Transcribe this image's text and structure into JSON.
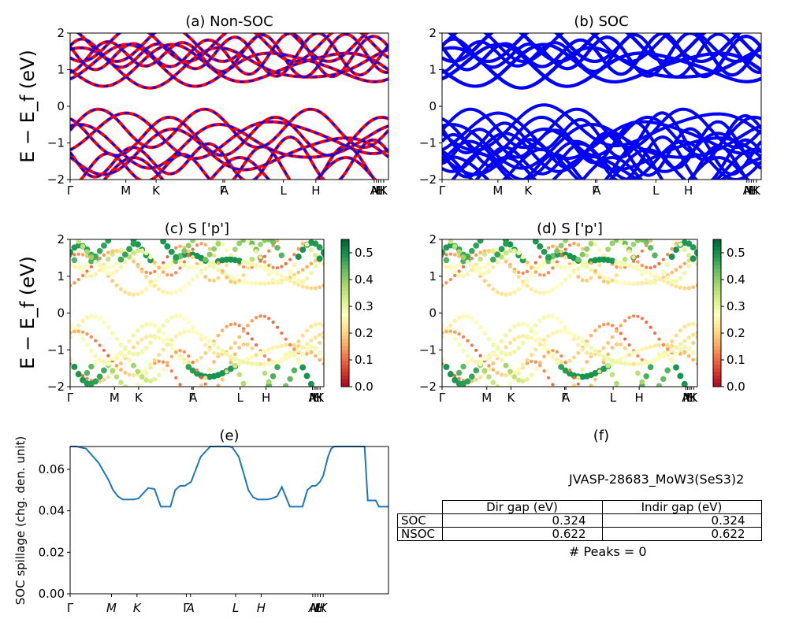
{
  "chart_data": [
    {
      "type": "line",
      "title": "(a) Non-SOC",
      "ylabel": "E − E_f (eV)",
      "ylim": [
        -2,
        2
      ],
      "yticks": [
        "2",
        "1",
        "0",
        "−1",
        "−2"
      ],
      "xtick_labels": [
        "Γ",
        "M",
        "K",
        "Γ",
        "A",
        "L",
        "H",
        "A",
        "M",
        "L",
        "H",
        "K"
      ],
      "series": [
        {
          "color": "#ff0000",
          "style": "solid",
          "band_count": 16
        },
        {
          "color": "#0000ff",
          "style": "dashed",
          "band_count": 16
        }
      ],
      "band_gap_eV": 0.622
    },
    {
      "type": "line",
      "title": "(b) SOC",
      "ylim": [
        -2,
        2
      ],
      "yticks": [
        "2",
        "1",
        "0",
        "−1",
        "−2"
      ],
      "xtick_labels": [
        "Γ",
        "M",
        "K",
        "Γ",
        "A",
        "L",
        "H",
        "A",
        "M",
        "L",
        "H",
        "K"
      ],
      "series": [
        {
          "color": "#0000ff",
          "style": "solid",
          "band_count": 32
        }
      ],
      "band_gap_eV": 0.324
    },
    {
      "type": "scatter",
      "title": "(c)  S ['p']",
      "ylabel": "E − E_f (eV)",
      "ylim": [
        -2,
        2
      ],
      "yticks": [
        "2",
        "1",
        "0",
        "−1",
        "−2"
      ],
      "xtick_labels": [
        "Γ",
        "M",
        "K",
        "Γ",
        "A",
        "L",
        "H",
        "A",
        "M",
        "L",
        "H",
        "K"
      ],
      "colormap": "RdYlGn",
      "colorbar_ticks": [
        "0.5",
        "0.4",
        "0.3",
        "0.2",
        "0.1",
        "0.0"
      ]
    },
    {
      "type": "scatter",
      "title": "(d) S ['p']",
      "ylim": [
        -2,
        2
      ],
      "yticks": [
        "2",
        "1",
        "0",
        "−1",
        "−2"
      ],
      "xtick_labels": [
        "Γ",
        "M",
        "K",
        "Γ",
        "A",
        "L",
        "H",
        "A",
        "M",
        "L",
        "H",
        "K"
      ],
      "colormap": "RdYlGn",
      "colorbar_ticks": [
        "0.5",
        "0.4",
        "0.3",
        "0.2",
        "0.1",
        "0.0"
      ]
    },
    {
      "type": "line",
      "title": "(e)",
      "ylabel": "SOC spillage (chg. den. unit)",
      "ylim": [
        0,
        0.071
      ],
      "yticks": [
        "0.06",
        "0.04",
        "0.02",
        "0.00"
      ],
      "xtick_labels": [
        "Γ",
        "M",
        "K",
        "Γ",
        "A",
        "L",
        "H",
        "A",
        "M",
        "L",
        "H",
        "K"
      ],
      "series": [
        {
          "color": "#1f77b4",
          "x": [
            0,
            0.02,
            0.05,
            0.09,
            0.12,
            0.135,
            0.15,
            0.165,
            0.18,
            0.2,
            0.215,
            0.245,
            0.265,
            0.285,
            0.3,
            0.315,
            0.33,
            0.345,
            0.36,
            0.38,
            0.41,
            0.44,
            0.47,
            0.5,
            0.51,
            0.53,
            0.545,
            0.56,
            0.575,
            0.59,
            0.605,
            0.62,
            0.635,
            0.65,
            0.665,
            0.69,
            0.715,
            0.73,
            0.745,
            0.76,
            0.77,
            0.775,
            0.785,
            0.795,
            0.8,
            0.81,
            0.82,
            0.83,
            0.85,
            0.87,
            0.89,
            0.91,
            0.925,
            0.935,
            0.94,
            0.96,
            0.97,
            0.98,
            1.0
          ],
          "y": [
            0.071,
            0.071,
            0.07,
            0.063,
            0.055,
            0.05,
            0.047,
            0.0455,
            0.0455,
            0.0455,
            0.046,
            0.051,
            0.0505,
            0.042,
            0.042,
            0.042,
            0.05,
            0.052,
            0.052,
            0.054,
            0.066,
            0.071,
            0.071,
            0.071,
            0.0705,
            0.066,
            0.058,
            0.05,
            0.0465,
            0.0455,
            0.0455,
            0.0455,
            0.046,
            0.047,
            0.0515,
            0.042,
            0.042,
            0.042,
            0.05,
            0.052,
            0.052,
            0.0525,
            0.054,
            0.057,
            0.06,
            0.066,
            0.07,
            0.071,
            0.071,
            0.071,
            0.071,
            0.071,
            0.071,
            0.045,
            0.045,
            0.045,
            0.042,
            0.042,
            0.042
          ]
        }
      ]
    }
  ],
  "panel_f": {
    "title": "(f)",
    "jid": "JVASP-28683_MoW3(SeS3)2",
    "table": {
      "headers": [
        "Dir gap (eV)",
        "Indir gap (eV)"
      ],
      "rows": [
        {
          "label": "SOC",
          "dir": "0.324",
          "indir": "0.324"
        },
        {
          "label": "NSOC",
          "dir": "0.622",
          "indir": "0.622"
        }
      ]
    },
    "peaks": "# Peaks = 0"
  }
}
